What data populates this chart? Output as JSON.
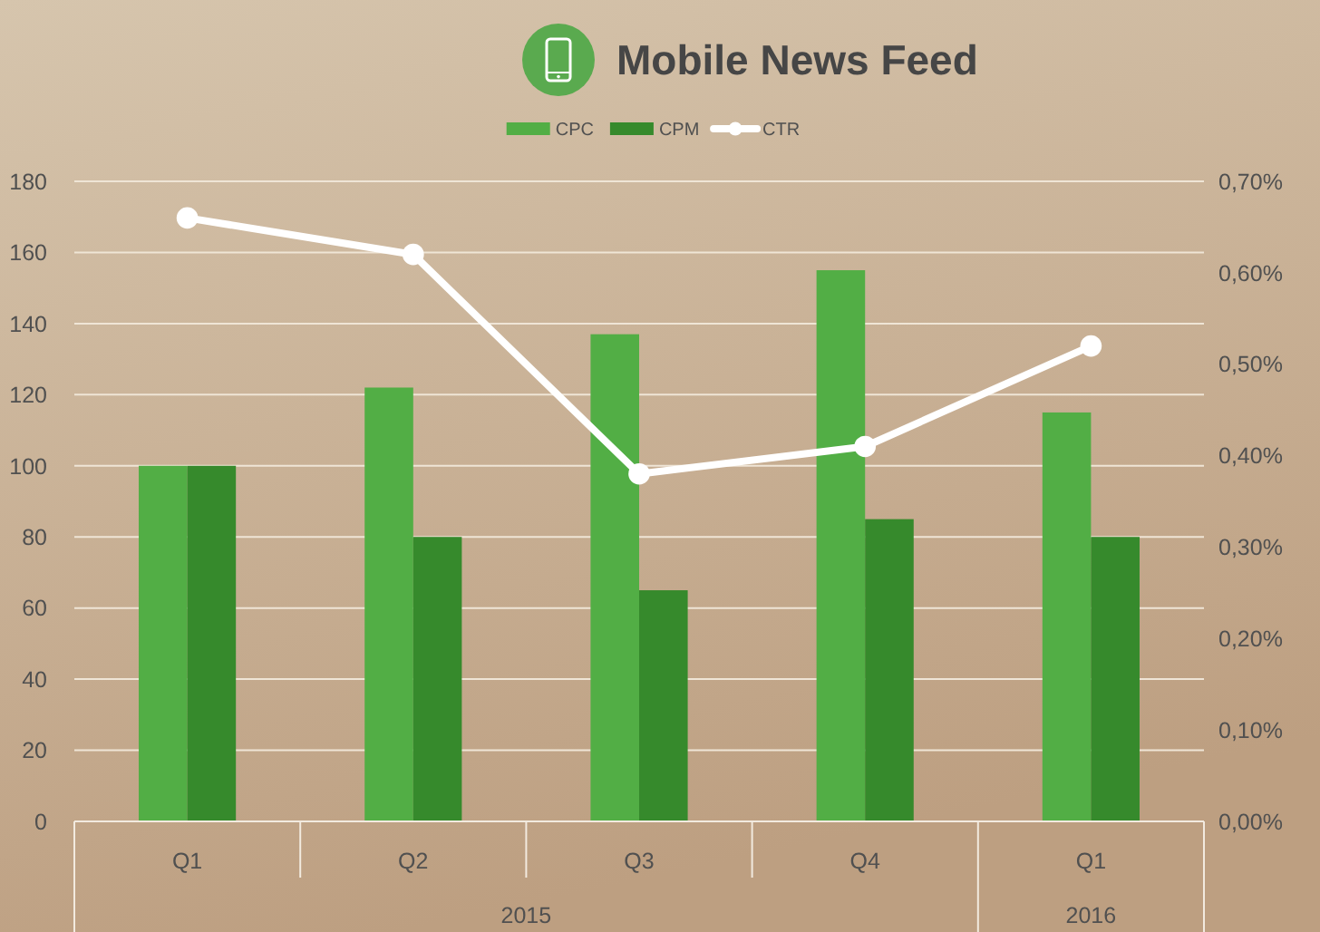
{
  "chart_data": {
    "type": "bar",
    "title": "Mobile News Feed",
    "categories": [
      "Q1",
      "Q2",
      "Q3",
      "Q4",
      "Q1"
    ],
    "series": [
      {
        "name": "CPC",
        "color": "#52ae45",
        "values": [
          100,
          122,
          137,
          155,
          115
        ]
      },
      {
        "name": "CPM",
        "color": "#368a2c",
        "values": [
          100,
          80,
          65,
          85,
          80
        ]
      },
      {
        "name": "CTR",
        "type": "line",
        "axis": "y2",
        "color": "#ffffff",
        "values": [
          0.66,
          0.62,
          0.38,
          0.41,
          0.52
        ]
      }
    ],
    "ylim": [
      0,
      180
    ],
    "yticks": [
      0,
      20,
      40,
      60,
      80,
      100,
      120,
      140,
      160,
      180
    ],
    "y2lim": [
      0,
      0.7
    ],
    "y2ticks": [
      {
        "value": 0,
        "label": "0,00%"
      },
      {
        "value": 0.1,
        "label": "0,10%"
      },
      {
        "value": 0.2,
        "label": "0,20%"
      },
      {
        "value": 0.3,
        "label": "0,30%"
      },
      {
        "value": 0.4,
        "label": "0,40%"
      },
      {
        "value": 0.5,
        "label": "0,50%"
      },
      {
        "value": 0.6,
        "label": "0,60%"
      },
      {
        "value": 0.7,
        "label": "0,70%"
      }
    ],
    "annotations": [
      "2015",
      "2016"
    ],
    "grid": "y",
    "legend": "top",
    "marker": "circle",
    "line_style": "solid"
  }
}
